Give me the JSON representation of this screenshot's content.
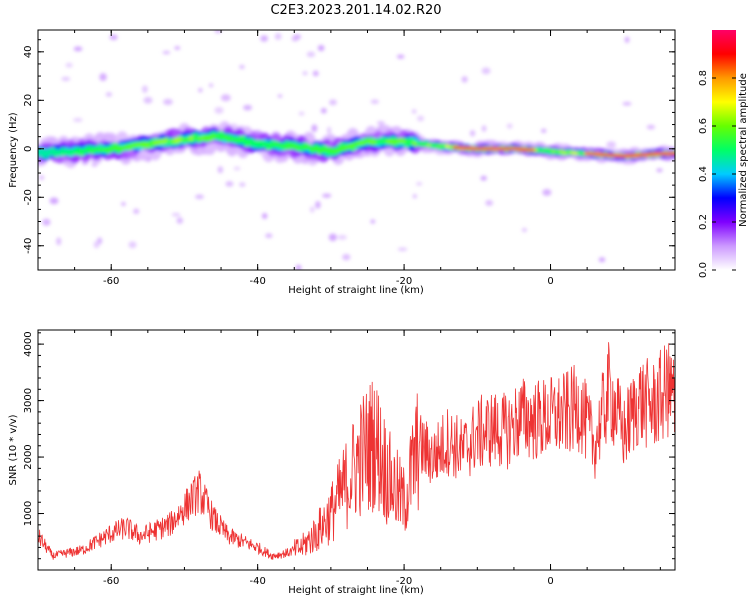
{
  "title": "C2E3.2023.201.14.02.R20",
  "chart_data": [
    {
      "type": "heatmap",
      "xlabel": "Height of straight line (km)",
      "ylabel": "Frequency (Hz)",
      "xlim": [
        -70,
        17
      ],
      "ylim": [
        -50,
        49
      ],
      "xticks": [
        -60,
        -40,
        -20,
        0
      ],
      "yticks": [
        -40,
        -20,
        0,
        20,
        40
      ],
      "colorbar": {
        "label": "Normalized spectral amplitude",
        "range": [
          0,
          1
        ],
        "ticks": [
          0.0,
          0.2,
          0.4,
          0.6,
          0.8
        ],
        "colormap": [
          "#ffffff",
          "#cc99ff",
          "#7f00ff",
          "#0000ff",
          "#00ccff",
          "#00ff66",
          "#66ff00",
          "#ffff00",
          "#ff9900",
          "#ff0000",
          "#ff0066"
        ]
      },
      "ridge": [
        {
          "x": -70,
          "freq": -2,
          "amp": 0.45
        },
        {
          "x": -65,
          "freq": -1,
          "amp": 0.5
        },
        {
          "x": -60,
          "freq": 0,
          "amp": 0.55
        },
        {
          "x": -55,
          "freq": 2,
          "amp": 0.6
        },
        {
          "x": -50,
          "freq": 4,
          "amp": 0.65
        },
        {
          "x": -45,
          "freq": 5,
          "amp": 0.55
        },
        {
          "x": -40,
          "freq": 2,
          "amp": 0.5
        },
        {
          "x": -35,
          "freq": 1,
          "amp": 0.55
        },
        {
          "x": -30,
          "freq": -1,
          "amp": 0.55
        },
        {
          "x": -25,
          "freq": 3,
          "amp": 0.6
        },
        {
          "x": -20,
          "freq": 3,
          "amp": 0.6
        },
        {
          "x": -15,
          "freq": 1,
          "amp": 0.65
        },
        {
          "x": -10,
          "freq": 0,
          "amp": 0.8
        },
        {
          "x": -5,
          "freq": 0,
          "amp": 0.8
        },
        {
          "x": 0,
          "freq": -1,
          "amp": 0.6
        },
        {
          "x": 5,
          "freq": -2,
          "amp": 0.7
        },
        {
          "x": 10,
          "freq": -3,
          "amp": 0.75
        },
        {
          "x": 15,
          "freq": -2,
          "amp": 0.8
        }
      ]
    },
    {
      "type": "line",
      "xlabel": "Height of straight line (km)",
      "ylabel": "SNR (10 * v/v)",
      "xlim": [
        -70,
        17
      ],
      "ylim": [
        0,
        4250
      ],
      "xticks": [
        -60,
        -40,
        -20,
        0
      ],
      "yticks": [
        1000,
        2000,
        3000,
        4000
      ],
      "color": "#ee3333",
      "series": [
        {
          "x": [
            -70,
            -68,
            -66,
            -64,
            -62,
            -60,
            -58,
            -56,
            -54,
            -52,
            -50,
            -48,
            -46,
            -44,
            -42,
            -40,
            -38,
            -36,
            -34,
            -32,
            -30,
            -28,
            -26,
            -24,
            -22,
            -20,
            -18,
            -16,
            -14,
            -12,
            -10,
            -8,
            -6,
            -4,
            -2,
            0,
            2,
            4,
            6,
            8,
            10,
            12,
            14,
            16,
            17
          ],
          "values": [
            600,
            250,
            300,
            350,
            500,
            650,
            750,
            600,
            700,
            800,
            1100,
            1400,
            900,
            600,
            500,
            400,
            250,
            300,
            400,
            650,
            1000,
            1500,
            2000,
            2300,
            1600,
            1200,
            2200,
            2000,
            2300,
            2100,
            2400,
            2500,
            2450,
            2700,
            2650,
            2700,
            2750,
            2900,
            2200,
            3200,
            2400,
            3000,
            2900,
            3200,
            3000
          ]
        }
      ]
    }
  ]
}
